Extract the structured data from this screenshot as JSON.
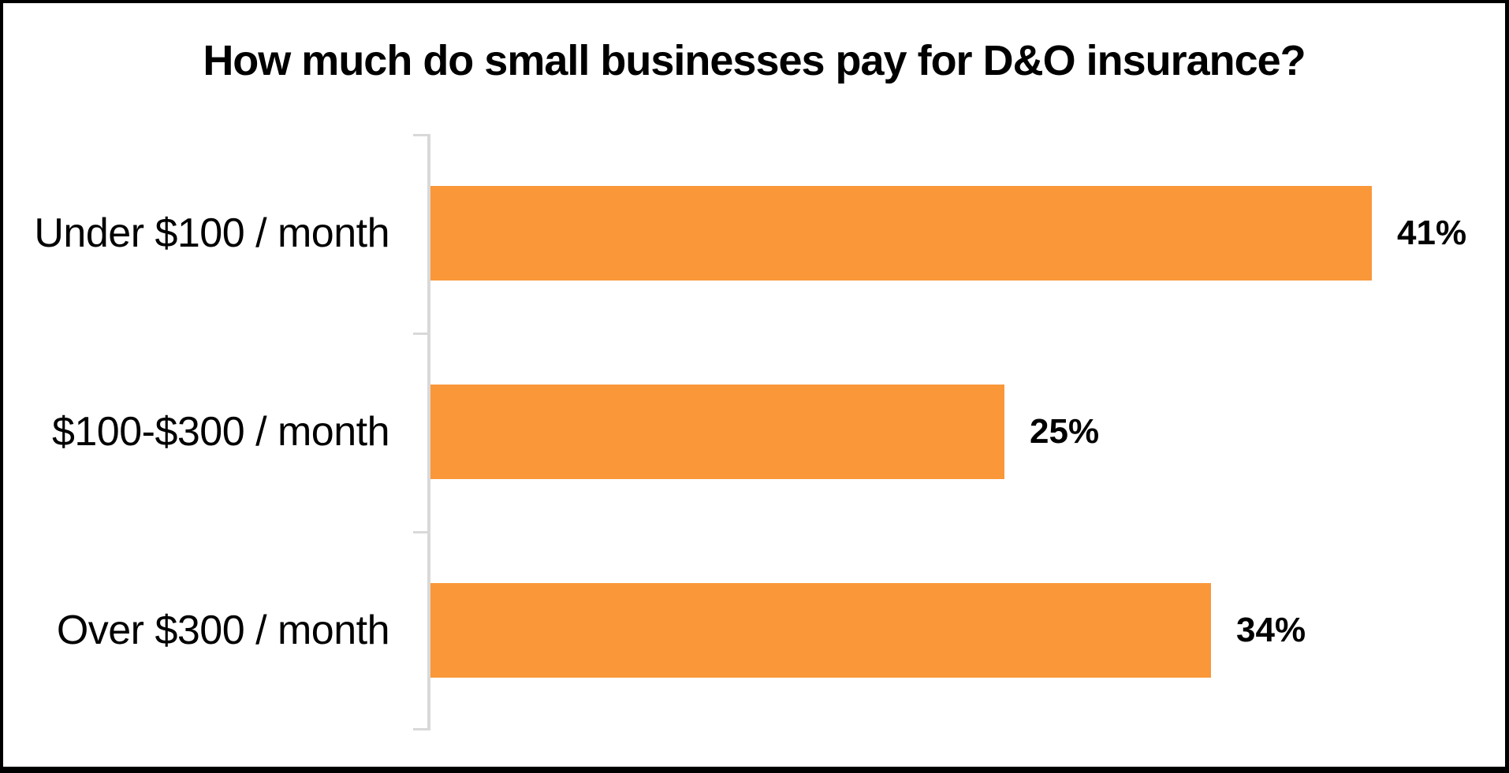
{
  "chart_data": {
    "type": "bar",
    "orientation": "horizontal",
    "title": "How much do small businesses pay for D&O insurance?",
    "categories": [
      "Under $100 / month",
      "$100-$300 / month",
      "Over $300 / month"
    ],
    "values": [
      41,
      25,
      34
    ],
    "value_labels": [
      "41%",
      "25%",
      "34%"
    ],
    "xlabel": "",
    "ylabel": "",
    "xlim": [
      0,
      45
    ],
    "grid": false,
    "legend": false,
    "bar_color": "#F99739",
    "axis_color": "#D9D9D9",
    "title_color": "#000000",
    "label_color": "#000000",
    "background": "#FFFFFF",
    "border_color": "#000000"
  }
}
